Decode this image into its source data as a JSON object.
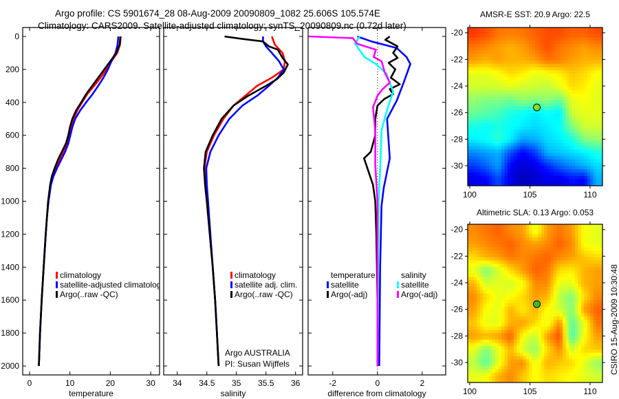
{
  "header": {
    "line1": "Argo profile: CS 5901674_28 08-Aug-2009 20090809_1082 25.606S 105.574E",
    "line2": "Climatology: CARS2009. Satellite-adjusted climatology: synTS_20090809.nc (0.72d later)"
  },
  "footer": {
    "credit1": "Argo AUSTRALIA",
    "credit2": "PI: Susan Wijffels",
    "stamp": "CSIRO 15-Aug-2009 10:30:48"
  },
  "colors": {
    "climatology": "#ff0000",
    "satellite": "#0000ff",
    "argo": "#000000",
    "sal_satellite": "#00ffff",
    "sal_argo": "#ff00ff"
  },
  "chart_data": [
    {
      "type": "line",
      "xlabel": "temperature",
      "ylabel": "",
      "xlim": [
        -1.7,
        32.2
      ],
      "ylim": [
        0,
        2055
      ],
      "y_reversed": true,
      "xticks": [
        "0",
        "10",
        "20",
        "30"
      ],
      "yticks": [
        "0",
        "200",
        "400",
        "600",
        "800",
        "1000",
        "1200",
        "1400",
        "1600",
        "1800",
        "2000"
      ],
      "legend": [
        "climatology",
        "satellite-adjusted climatology",
        "Argo(..raw -QC)"
      ],
      "legend_placement": "lower-center",
      "depth": [
        0,
        50,
        100,
        150,
        200,
        250,
        300,
        350,
        400,
        450,
        500,
        550,
        600,
        650,
        700,
        750,
        800,
        850,
        900,
        1000,
        1100,
        1200,
        1400,
        1600,
        1800,
        2000
      ],
      "series": [
        {
          "name": "climatology",
          "color": "#ff0000",
          "values": [
            22.6,
            22.4,
            21.7,
            20.3,
            19,
            17.6,
            16,
            14.3,
            13,
            11.8,
            10.9,
            10.3,
            9.8,
            9.2,
            8.3,
            7.3,
            6.5,
            5.7,
            5.2,
            4.6,
            4.3,
            4.0,
            3.5,
            3.0,
            2.6,
            2.3
          ]
        },
        {
          "name": "satellite-adjusted climatology",
          "color": "#0000ff",
          "values": [
            22,
            21.8,
            21.3,
            20.3,
            19.4,
            18.3,
            17,
            15.6,
            14,
            12.5,
            11.3,
            10.6,
            10.1,
            9.6,
            8.8,
            7.8,
            6.8,
            5.9,
            5.3,
            4.7,
            4.3,
            4.0,
            3.5,
            3.0,
            2.6,
            2.3
          ]
        },
        {
          "name": "Argo(..raw -QC)",
          "color": "#000000",
          "values": [
            22.5,
            22.3,
            21.5,
            20,
            18.5,
            17,
            15.5,
            14,
            12.8,
            11.5,
            10.6,
            10,
            9.6,
            9,
            8,
            7,
            6.2,
            5.5,
            5.1,
            4.6,
            4.3,
            4.0,
            3.5,
            3.0,
            2.6,
            2.3
          ]
        }
      ]
    },
    {
      "type": "line",
      "xlabel": "salinity",
      "xlim": [
        33.77,
        36.12
      ],
      "ylim": [
        0,
        2055
      ],
      "y_reversed": true,
      "xticks": [
        "34",
        "34.5",
        "35",
        "35.5",
        "36"
      ],
      "legend": [
        "climatology",
        "satellite adj. clim.",
        "Argo(..raw -QC)"
      ],
      "legend_placement": "lower-center",
      "series": [
        {
          "name": "climatology",
          "color": "#ff0000",
          "depth": [
            0,
            50,
            100,
            150,
            200,
            250,
            300,
            360,
            420,
            500,
            600,
            700,
            800,
            900,
            1000,
            1200,
            1400,
            1600,
            1800,
            2000
          ],
          "values": [
            35.6,
            35.65,
            35.78,
            35.82,
            35.8,
            35.6,
            35.35,
            35.15,
            34.95,
            34.78,
            34.62,
            34.5,
            34.46,
            34.47,
            34.5,
            34.55,
            34.6,
            34.64,
            34.67,
            34.7
          ]
        },
        {
          "name": "satellite adj. clim.",
          "color": "#0000ff",
          "depth": [
            0,
            30,
            60,
            100,
            150,
            200,
            250,
            300,
            360,
            420,
            500,
            600,
            700,
            800,
            900,
            1000,
            1200,
            1400,
            1600,
            1800,
            2000
          ],
          "values": [
            35.45,
            35.45,
            35.5,
            35.6,
            35.72,
            35.8,
            35.7,
            35.55,
            35.35,
            35.1,
            34.88,
            34.7,
            34.56,
            34.49,
            34.5,
            34.52,
            34.56,
            34.6,
            34.64,
            34.67,
            34.7
          ]
        },
        {
          "name": "Argo(..raw -QC)",
          "color": "#000000",
          "depth": [
            0,
            15,
            30,
            60,
            80,
            130,
            170,
            220,
            260,
            300,
            360,
            420,
            500,
            600,
            700,
            800,
            900,
            1000,
            1200,
            1400,
            1600,
            1800,
            2000
          ],
          "values": [
            34.8,
            35.1,
            35.45,
            35.55,
            35.7,
            35.78,
            35.87,
            35.8,
            35.68,
            35.5,
            35.2,
            34.95,
            34.75,
            34.6,
            34.48,
            34.45,
            34.47,
            34.5,
            34.55,
            34.6,
            34.64,
            34.67,
            34.7
          ]
        }
      ]
    },
    {
      "type": "line",
      "xlabel": "difference from climatology",
      "xlim": [
        -3.1,
        3.05
      ],
      "ylim": [
        0,
        2055
      ],
      "y_reversed": true,
      "xticks": [
        "-2",
        "0",
        "2"
      ],
      "legend_groups": [
        {
          "heading": "temperature",
          "items": [
            "satellite",
            "Argo(-adj)"
          ]
        },
        {
          "heading": "salinity",
          "items": [
            "satellite",
            "Argo(-adj)"
          ]
        }
      ],
      "series": [
        {
          "name": "temperature satellite",
          "color": "#0000ff",
          "depth": [
            0,
            30,
            70,
            125,
            167,
            280,
            390,
            500,
            740,
            920,
            1030,
            1400,
            2000
          ],
          "values": [
            -0.9,
            -0.27,
            0.86,
            1.3,
            1.47,
            1.17,
            0.86,
            0.43,
            0.55,
            0.28,
            0.18,
            0.12,
            0.08
          ]
        },
        {
          "name": "temperature Argo(-adj)",
          "color": "#000000",
          "depth": [
            0,
            20,
            60,
            100,
            130,
            160,
            200,
            250,
            290,
            320,
            350,
            380,
            420,
            500,
            600,
            700,
            740,
            800,
            900,
            1000,
            1200,
            1600,
            2000
          ],
          "values": [
            0.55,
            0.35,
            0.9,
            0.7,
            0.9,
            0.5,
            0.8,
            0.6,
            1.0,
            0.55,
            0.7,
            0.3,
            0.0,
            -0.1,
            -0.1,
            -0.3,
            -0.6,
            -0.45,
            -0.2,
            -0.1,
            -0.05,
            0,
            0
          ]
        },
        {
          "name": "salinity satellite",
          "color": "#00ffff",
          "depth": [
            0,
            45,
            125,
            167,
            225,
            335,
            445,
            570,
            780,
            1000,
            1500,
            2000
          ],
          "values": [
            -0.8,
            -1.0,
            -0.58,
            -0.07,
            0.4,
            0.7,
            0.43,
            0.18,
            0.13,
            0.05,
            0.02,
            0.0
          ]
        },
        {
          "name": "salinity Argo(-adj)",
          "color": "#ff00ff",
          "depth": [
            0,
            10,
            45,
            80,
            125,
            150,
            220,
            280,
            320,
            360,
            430,
            570,
            780,
            1000,
            1500,
            2000
          ],
          "values": [
            -3.05,
            -1.1,
            -0.9,
            -0.07,
            -0.17,
            0.18,
            0.33,
            0.55,
            0.23,
            0.0,
            -0.2,
            -0.1,
            -0.1,
            0,
            0,
            0
          ]
        }
      ]
    },
    {
      "type": "heatmap",
      "title": "AMSR-E SST: 20.9 Argo: 22.5",
      "colormap": "jet",
      "xlim": [
        99.83,
        111.03
      ],
      "ylim": [
        -31.5,
        -19.6
      ],
      "xticks": [
        "100",
        "105",
        "110"
      ],
      "yticks": [
        "-20",
        "-22",
        "-24",
        "-26",
        "-28",
        "-30"
      ],
      "marker": {
        "lon": 105.574,
        "lat": -25.606,
        "color": "#80e020"
      },
      "values": [
        [
          0.82,
          0.8,
          0.76,
          0.75,
          0.76,
          0.78,
          0.8,
          0.8,
          0.78,
          0.78,
          0.8
        ],
        [
          0.76,
          0.74,
          0.72,
          0.7,
          0.72,
          0.76,
          0.8,
          0.76,
          0.74,
          0.72,
          0.74
        ],
        [
          0.72,
          0.7,
          0.72,
          0.7,
          0.7,
          0.72,
          0.76,
          0.75,
          0.72,
          0.7,
          0.7
        ],
        [
          0.6,
          0.6,
          0.62,
          0.66,
          0.64,
          0.6,
          0.62,
          0.64,
          0.68,
          0.66,
          0.62
        ],
        [
          0.58,
          0.58,
          0.58,
          0.6,
          0.58,
          0.58,
          0.56,
          0.6,
          0.66,
          0.64,
          0.6
        ],
        [
          0.52,
          0.5,
          0.5,
          0.48,
          0.52,
          0.5,
          0.52,
          0.48,
          0.6,
          0.62,
          0.6
        ],
        [
          0.48,
          0.46,
          0.44,
          0.4,
          0.38,
          0.36,
          0.38,
          0.36,
          0.58,
          0.6,
          0.6
        ],
        [
          0.4,
          0.38,
          0.4,
          0.38,
          0.36,
          0.34,
          0.36,
          0.38,
          0.5,
          0.58,
          0.58
        ],
        [
          0.36,
          0.38,
          0.42,
          0.36,
          0.28,
          0.3,
          0.34,
          0.36,
          0.4,
          0.5,
          0.52
        ],
        [
          0.26,
          0.28,
          0.3,
          0.2,
          0.12,
          0.18,
          0.3,
          0.32,
          0.34,
          0.36,
          0.4
        ],
        [
          0.18,
          0.22,
          0.28,
          0.12,
          0.08,
          0.1,
          0.16,
          0.22,
          0.26,
          0.3,
          0.34
        ],
        [
          0.1,
          0.12,
          0.2,
          0.1,
          0.06,
          0.08,
          0.1,
          0.1,
          0.14,
          0.12,
          0.3
        ]
      ]
    },
    {
      "type": "heatmap",
      "title": "Altimetric SLA: 0.13 Argo: 0.053",
      "colormap": "jet",
      "xlim": [
        99.83,
        111.03
      ],
      "ylim": [
        -31.5,
        -19.6
      ],
      "xticks": [
        "100",
        "105",
        "110"
      ],
      "yticks": [
        "-20",
        "-22",
        "-24",
        "-26",
        "-28",
        "-30"
      ],
      "marker": {
        "lon": 105.574,
        "lat": -25.606,
        "color": "#30c030"
      },
      "values": [
        [
          0.74,
          0.76,
          0.78,
          0.74,
          0.72,
          0.6,
          0.72,
          0.76,
          0.72,
          0.62,
          0.6
        ],
        [
          0.72,
          0.74,
          0.76,
          0.78,
          0.74,
          0.72,
          0.74,
          0.78,
          0.74,
          0.62,
          0.6
        ],
        [
          0.66,
          0.7,
          0.72,
          0.76,
          0.74,
          0.76,
          0.78,
          0.74,
          0.72,
          0.68,
          0.66
        ],
        [
          0.6,
          0.5,
          0.58,
          0.66,
          0.72,
          0.78,
          0.76,
          0.66,
          0.64,
          0.7,
          0.72
        ],
        [
          0.7,
          0.58,
          0.6,
          0.58,
          0.62,
          0.74,
          0.74,
          0.6,
          0.6,
          0.7,
          0.72
        ],
        [
          0.74,
          0.66,
          0.6,
          0.62,
          0.66,
          0.72,
          0.7,
          0.56,
          0.5,
          0.66,
          0.74
        ],
        [
          0.72,
          0.62,
          0.6,
          0.7,
          0.64,
          0.7,
          0.62,
          0.58,
          0.5,
          0.72,
          0.78
        ],
        [
          0.68,
          0.6,
          0.6,
          0.7,
          0.72,
          0.66,
          0.6,
          0.74,
          0.46,
          0.6,
          0.76
        ],
        [
          0.72,
          0.7,
          0.72,
          0.78,
          0.62,
          0.56,
          0.72,
          0.8,
          0.44,
          0.62,
          0.72
        ],
        [
          0.6,
          0.5,
          0.6,
          0.7,
          0.58,
          0.52,
          0.66,
          0.74,
          0.58,
          0.66,
          0.68
        ],
        [
          0.56,
          0.46,
          0.6,
          0.72,
          0.74,
          0.6,
          0.7,
          0.68,
          0.66,
          0.6,
          0.52
        ],
        [
          0.6,
          0.62,
          0.7,
          0.74,
          0.68,
          0.62,
          0.66,
          0.64,
          0.62,
          0.6,
          0.58
        ]
      ]
    }
  ]
}
